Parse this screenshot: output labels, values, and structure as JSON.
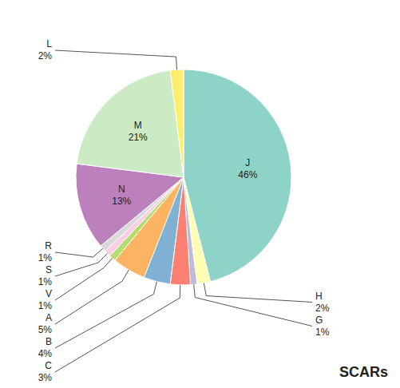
{
  "chart_data": {
    "type": "pie",
    "title": "SCARs",
    "categories": [
      "J",
      "H",
      "G",
      "C",
      "B",
      "A",
      "V",
      "S",
      "R",
      "N",
      "M",
      "L"
    ],
    "values": [
      46,
      2,
      1,
      3,
      4,
      5,
      1,
      1,
      1,
      13,
      21,
      2
    ],
    "value_labels": [
      "46%",
      "2%",
      "1%",
      "3%",
      "4%",
      "5%",
      "1%",
      "1%",
      "1%",
      "13%",
      "21%",
      "2%"
    ],
    "data_labels": true
  }
}
